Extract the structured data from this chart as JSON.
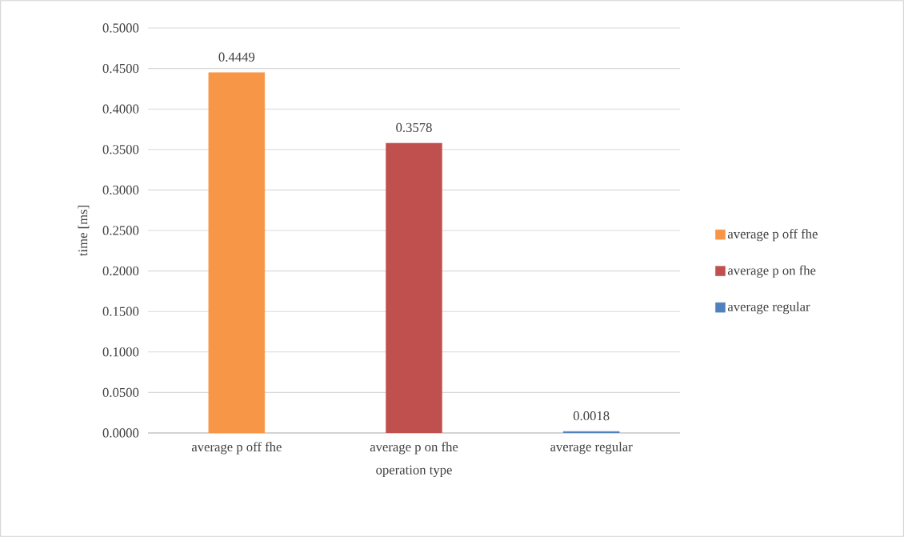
{
  "chart_data": {
    "type": "bar",
    "xlabel": "operation type",
    "ylabel": "time [ms]",
    "categories": [
      "average p off fhe",
      "average p on fhe",
      "average regular"
    ],
    "series": [
      {
        "name": "average p off fhe",
        "color": "#f79646",
        "values": [
          0.4449,
          null,
          null
        ]
      },
      {
        "name": "average p on fhe",
        "color": "#c0504d",
        "values": [
          null,
          0.3578,
          null
        ]
      },
      {
        "name": "average regular",
        "color": "#4f81bd",
        "values": [
          null,
          null,
          0.0018
        ]
      }
    ],
    "ylim": [
      0,
      0.5
    ],
    "yticks": [
      {
        "value": 0,
        "label": "0.0000"
      },
      {
        "value": 0.05,
        "label": "0.0500"
      },
      {
        "value": 0.1,
        "label": "0.1000"
      },
      {
        "value": 0.15,
        "label": "0.1500"
      },
      {
        "value": 0.2,
        "label": "0.2000"
      },
      {
        "value": 0.25,
        "label": "0.2500"
      },
      {
        "value": 0.3,
        "label": "0.3000"
      },
      {
        "value": 0.35,
        "label": "0.3500"
      },
      {
        "value": 0.4,
        "label": "0.4000"
      },
      {
        "value": 0.45,
        "label": "0.4500"
      },
      {
        "value": 0.5,
        "label": "0.5000"
      }
    ],
    "grid": "y",
    "legend": "right",
    "data_labels": true
  }
}
